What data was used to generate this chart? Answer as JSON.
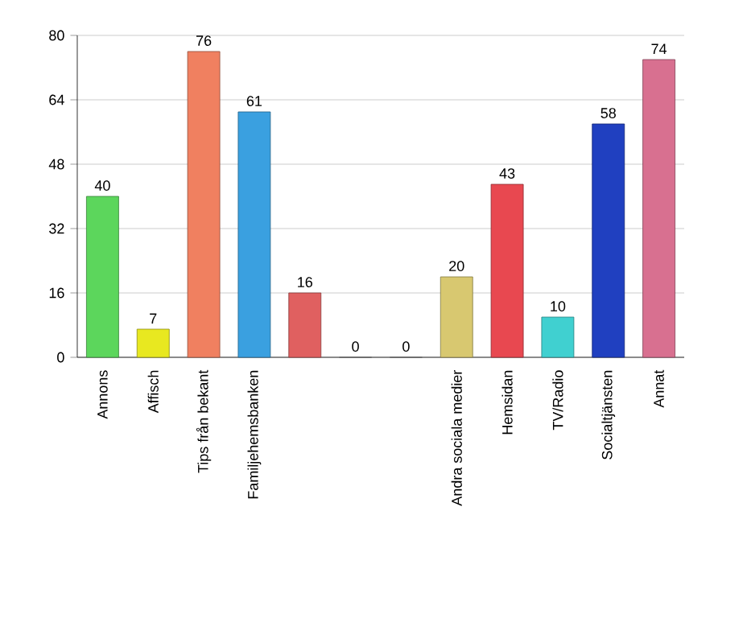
{
  "chart_data": {
    "type": "bar",
    "categories": [
      "Annons",
      "Affisch",
      "Tips från bekant",
      "Familjehemsbanken",
      null,
      null,
      null,
      "Andra sociala medier",
      "Hemsidan",
      "TV/Radio",
      "Socialtjänsten",
      "Annat"
    ],
    "values": [
      40,
      7,
      76,
      61,
      16,
      0,
      0,
      20,
      43,
      10,
      58,
      74
    ],
    "colors": [
      "#5cd65c",
      "#e8e820",
      "#f08060",
      "#3aa0e0",
      "#e06060",
      "#a0a0a0",
      "#a0a0a0",
      "#d8c870",
      "#e84850",
      "#40d0d0",
      "#2040c0",
      "#d87090"
    ],
    "ylim": [
      0,
      80
    ],
    "yticks": [
      0,
      16,
      32,
      48,
      64,
      80
    ],
    "grid": "y",
    "data_labels": true
  }
}
